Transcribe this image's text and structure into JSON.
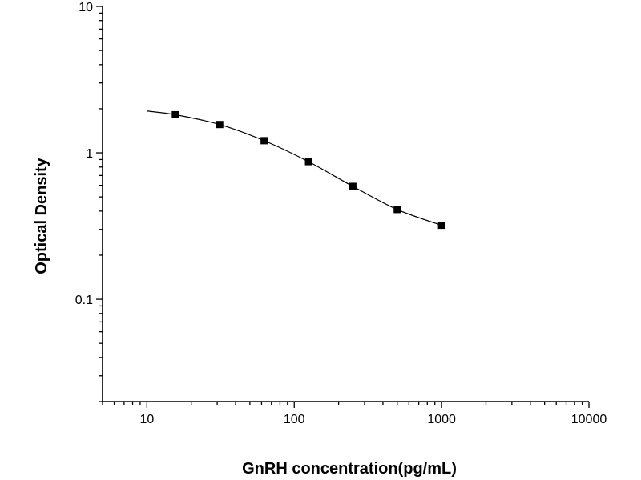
{
  "chart_data": {
    "type": "scatter",
    "title": "",
    "xlabel": "GnRH concentration(pg/mL)",
    "ylabel": "Optical Density",
    "xscale": "log",
    "yscale": "log",
    "xlim": [
      5,
      10000
    ],
    "ylim": [
      0.02,
      10
    ],
    "xticks": [
      {
        "value": 10,
        "label": "10"
      },
      {
        "value": 100,
        "label": "100"
      },
      {
        "value": 1000,
        "label": "1000"
      },
      {
        "value": 10000,
        "label": "10000"
      }
    ],
    "yticks": [
      {
        "value": 0.1,
        "label": "0.1"
      },
      {
        "value": 1,
        "label": "1"
      },
      {
        "value": 10,
        "label": "10"
      }
    ],
    "grid": false,
    "legend": "none",
    "series": [
      {
        "marker": "square",
        "x": [
          15.6,
          31.2,
          62.5,
          125,
          250,
          500,
          1000
        ],
        "y": [
          1.82,
          1.56,
          1.21,
          0.87,
          0.59,
          0.41,
          0.32
        ]
      }
    ],
    "fit_curve": {
      "x": [
        10,
        15.6,
        31.2,
        62.5,
        125,
        250,
        500,
        1000
      ],
      "y": [
        1.93,
        1.82,
        1.56,
        1.21,
        0.87,
        0.59,
        0.41,
        0.32
      ]
    },
    "colors": {
      "axis": "#000000",
      "marker": "#000000",
      "line": "#000000"
    }
  }
}
